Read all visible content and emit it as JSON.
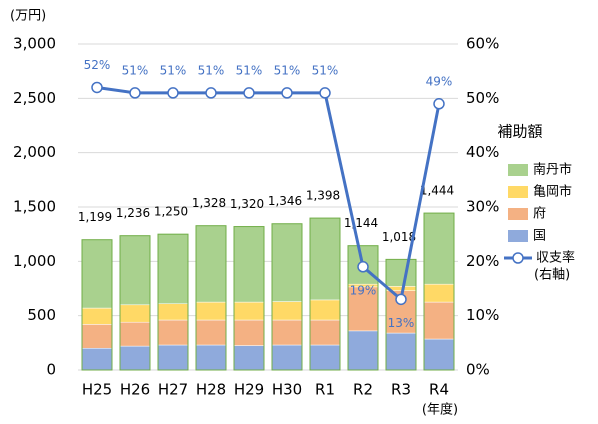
{
  "chart_data": {
    "type": "bar",
    "unit_label": "(万円)",
    "x_unit_label": "(年度)",
    "legend_title": "補助額",
    "categories": [
      "H25",
      "H26",
      "H27",
      "H28",
      "H29",
      "H30",
      "R1",
      "R2",
      "R3",
      "R4"
    ],
    "series": [
      {
        "name": "国",
        "color": "#8faadc",
        "values": [
          200,
          220,
          230,
          230,
          225,
          230,
          230,
          360,
          340,
          285
        ]
      },
      {
        "name": "府",
        "color": "#f4b183",
        "values": [
          220,
          220,
          230,
          230,
          235,
          230,
          230,
          405,
          390,
          340
        ]
      },
      {
        "name": "亀岡市",
        "color": "#ffd966",
        "values": [
          150,
          160,
          150,
          165,
          165,
          170,
          185,
          25,
          40,
          165
        ]
      },
      {
        "name": "南丹市",
        "color": "#a9d18e",
        "values": [
          629,
          636,
          640,
          703,
          695,
          716,
          753,
          354,
          248,
          654
        ]
      },
      {
        "name": "収支率",
        "note": "(右軸)",
        "type": "line",
        "axis": "y2",
        "color": "#4472c4",
        "values": [
          52,
          51,
          51,
          51,
          51,
          51,
          51,
          19,
          13,
          49
        ],
        "value_labels": [
          "52%",
          "51%",
          "51%",
          "51%",
          "51%",
          "51%",
          "51%",
          "19%",
          "13%",
          "49%"
        ]
      }
    ],
    "totals": [
      1199,
      1236,
      1250,
      1328,
      1320,
      1346,
      1398,
      1144,
      1018,
      1444
    ],
    "total_labels": [
      "1,199",
      "1,236",
      "1,250",
      "1,328",
      "1,320",
      "1,346",
      "1,398",
      "1,144",
      "1,018",
      "1,444"
    ],
    "ylim": [
      0,
      3000
    ],
    "yticks": [
      0,
      {
        "value": 500,
        "label": "500"
      },
      {
        "value": 1000,
        "label": "1,000"
      },
      {
        "value": 1500,
        "label": "1,500"
      },
      {
        "value": 2000,
        "label": "2,000"
      },
      {
        "value": 2500,
        "label": "2,500"
      },
      {
        "value": 3000,
        "label": "3,000"
      }
    ],
    "y2lim": [
      0,
      60
    ],
    "y2ticks": [
      {
        "value": 0,
        "label": "0%"
      },
      {
        "value": 10,
        "label": "10%"
      },
      {
        "value": 20,
        "label": "20%"
      },
      {
        "value": 30,
        "label": "30%"
      },
      {
        "value": 40,
        "label": "40%"
      },
      {
        "value": 50,
        "label": "50%"
      },
      {
        "value": 60,
        "label": "60%"
      }
    ],
    "grid": true,
    "legend": "right"
  }
}
